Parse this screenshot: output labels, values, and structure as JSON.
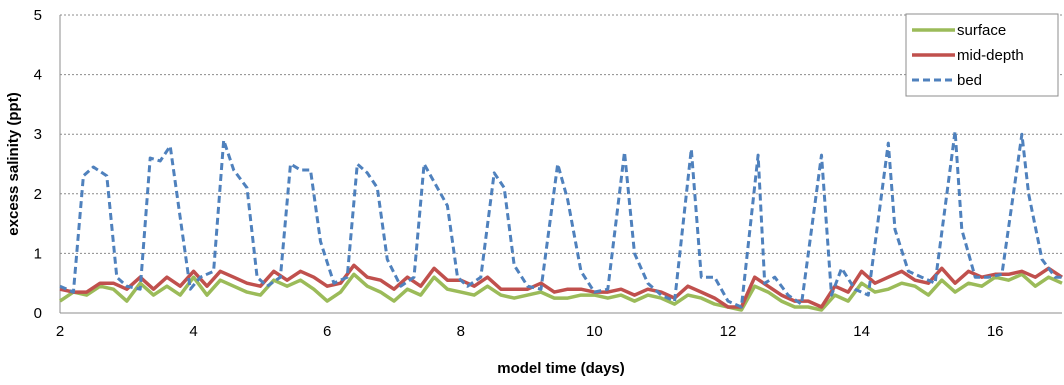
{
  "chart_data": {
    "type": "line",
    "xlabel": "model time (days)",
    "ylabel": "excess salinity (ppt)",
    "xlim": [
      2,
      17
    ],
    "ylim": [
      0,
      5
    ],
    "x_ticks": [
      2,
      4,
      6,
      8,
      10,
      12,
      14,
      16
    ],
    "y_ticks": [
      0,
      1,
      2,
      3,
      4,
      5
    ],
    "grid": "horizontal dashed",
    "legend_position": "top-right",
    "series": [
      {
        "name": "surface",
        "color": "#9BBB59",
        "style": "solid",
        "x": [
          2.0,
          2.2,
          2.4,
          2.6,
          2.8,
          3.0,
          3.2,
          3.4,
          3.6,
          3.8,
          4.0,
          4.2,
          4.4,
          4.6,
          4.8,
          5.0,
          5.2,
          5.4,
          5.6,
          5.8,
          6.0,
          6.2,
          6.4,
          6.6,
          6.8,
          7.0,
          7.2,
          7.4,
          7.6,
          7.8,
          8.0,
          8.2,
          8.4,
          8.6,
          8.8,
          9.0,
          9.2,
          9.4,
          9.6,
          9.8,
          10.0,
          10.2,
          10.4,
          10.6,
          10.8,
          11.0,
          11.2,
          11.4,
          11.6,
          11.8,
          12.0,
          12.2,
          12.4,
          12.6,
          12.8,
          13.0,
          13.2,
          13.4,
          13.6,
          13.8,
          14.0,
          14.2,
          14.4,
          14.6,
          14.8,
          15.0,
          15.2,
          15.4,
          15.6,
          15.8,
          16.0,
          16.2,
          16.4,
          16.6,
          16.8,
          17.0
        ],
        "y": [
          0.2,
          0.35,
          0.3,
          0.45,
          0.4,
          0.2,
          0.5,
          0.3,
          0.45,
          0.3,
          0.6,
          0.3,
          0.55,
          0.45,
          0.35,
          0.3,
          0.55,
          0.45,
          0.55,
          0.4,
          0.2,
          0.35,
          0.65,
          0.45,
          0.35,
          0.2,
          0.4,
          0.3,
          0.6,
          0.4,
          0.35,
          0.3,
          0.45,
          0.3,
          0.25,
          0.3,
          0.35,
          0.25,
          0.25,
          0.3,
          0.3,
          0.25,
          0.3,
          0.2,
          0.3,
          0.25,
          0.15,
          0.3,
          0.25,
          0.15,
          0.1,
          0.05,
          0.45,
          0.35,
          0.2,
          0.1,
          0.1,
          0.05,
          0.3,
          0.2,
          0.5,
          0.35,
          0.4,
          0.5,
          0.45,
          0.3,
          0.55,
          0.35,
          0.5,
          0.45,
          0.6,
          0.55,
          0.65,
          0.45,
          0.6,
          0.5
        ]
      },
      {
        "name": "mid-depth",
        "color": "#C0504D",
        "style": "solid",
        "x": [
          2.0,
          2.2,
          2.4,
          2.6,
          2.8,
          3.0,
          3.2,
          3.4,
          3.6,
          3.8,
          4.0,
          4.2,
          4.4,
          4.6,
          4.8,
          5.0,
          5.2,
          5.4,
          5.6,
          5.8,
          6.0,
          6.2,
          6.4,
          6.6,
          6.8,
          7.0,
          7.2,
          7.4,
          7.6,
          7.8,
          8.0,
          8.2,
          8.4,
          8.6,
          8.8,
          9.0,
          9.2,
          9.4,
          9.6,
          9.8,
          10.0,
          10.2,
          10.4,
          10.6,
          10.8,
          11.0,
          11.2,
          11.4,
          11.6,
          11.8,
          12.0,
          12.2,
          12.4,
          12.6,
          12.8,
          13.0,
          13.2,
          13.4,
          13.6,
          13.8,
          14.0,
          14.2,
          14.4,
          14.6,
          14.8,
          15.0,
          15.2,
          15.4,
          15.6,
          15.8,
          16.0,
          16.2,
          16.4,
          16.6,
          16.8,
          17.0
        ],
        "y": [
          0.4,
          0.35,
          0.35,
          0.5,
          0.5,
          0.4,
          0.6,
          0.4,
          0.6,
          0.45,
          0.7,
          0.45,
          0.7,
          0.6,
          0.5,
          0.45,
          0.7,
          0.55,
          0.7,
          0.6,
          0.45,
          0.5,
          0.8,
          0.6,
          0.55,
          0.4,
          0.6,
          0.45,
          0.75,
          0.55,
          0.55,
          0.45,
          0.6,
          0.4,
          0.4,
          0.4,
          0.5,
          0.35,
          0.4,
          0.4,
          0.35,
          0.35,
          0.4,
          0.3,
          0.4,
          0.35,
          0.25,
          0.45,
          0.35,
          0.25,
          0.1,
          0.1,
          0.6,
          0.45,
          0.3,
          0.2,
          0.2,
          0.1,
          0.45,
          0.35,
          0.7,
          0.5,
          0.6,
          0.7,
          0.55,
          0.5,
          0.75,
          0.5,
          0.7,
          0.6,
          0.65,
          0.65,
          0.7,
          0.6,
          0.75,
          0.6
        ]
      },
      {
        "name": "bed",
        "color": "#4F81BD",
        "style": "dashed",
        "x": [
          2.0,
          2.2,
          2.35,
          2.5,
          2.7,
          2.85,
          3.0,
          3.2,
          3.35,
          3.5,
          3.65,
          3.8,
          3.95,
          4.1,
          4.3,
          4.45,
          4.6,
          4.8,
          4.95,
          5.1,
          5.3,
          5.45,
          5.6,
          5.75,
          5.9,
          6.1,
          6.3,
          6.45,
          6.6,
          6.75,
          6.9,
          7.1,
          7.3,
          7.45,
          7.6,
          7.8,
          7.95,
          8.1,
          8.3,
          8.5,
          8.65,
          8.8,
          9.0,
          9.2,
          9.45,
          9.6,
          9.8,
          10.0,
          10.2,
          10.45,
          10.6,
          10.8,
          11.0,
          11.2,
          11.45,
          11.6,
          11.8,
          12.0,
          12.2,
          12.45,
          12.55,
          12.7,
          12.9,
          13.1,
          13.4,
          13.55,
          13.7,
          13.9,
          14.1,
          14.4,
          14.5,
          14.7,
          14.9,
          15.1,
          15.4,
          15.5,
          15.7,
          15.9,
          16.1,
          16.4,
          16.5,
          16.7,
          16.9,
          17.0
        ],
        "y": [
          0.45,
          0.35,
          2.3,
          2.45,
          2.3,
          0.6,
          0.45,
          0.4,
          2.6,
          2.55,
          2.8,
          1.6,
          0.4,
          0.6,
          0.7,
          2.9,
          2.4,
          2.1,
          0.6,
          0.45,
          0.6,
          2.5,
          2.4,
          2.4,
          1.2,
          0.5,
          0.6,
          2.5,
          2.35,
          2.1,
          0.9,
          0.45,
          0.6,
          2.5,
          2.2,
          1.8,
          0.6,
          0.45,
          0.6,
          2.35,
          2.1,
          0.8,
          0.45,
          0.4,
          2.5,
          1.9,
          0.7,
          0.35,
          0.4,
          2.7,
          1.0,
          0.5,
          0.3,
          0.2,
          2.75,
          0.6,
          0.6,
          0.2,
          0.1,
          2.65,
          0.5,
          0.6,
          0.3,
          0.15,
          2.65,
          0.3,
          0.75,
          0.4,
          0.3,
          2.85,
          1.4,
          0.7,
          0.6,
          0.5,
          3.05,
          1.4,
          0.6,
          0.6,
          0.65,
          3.0,
          2.0,
          0.9,
          0.6,
          0.6
        ]
      }
    ]
  }
}
